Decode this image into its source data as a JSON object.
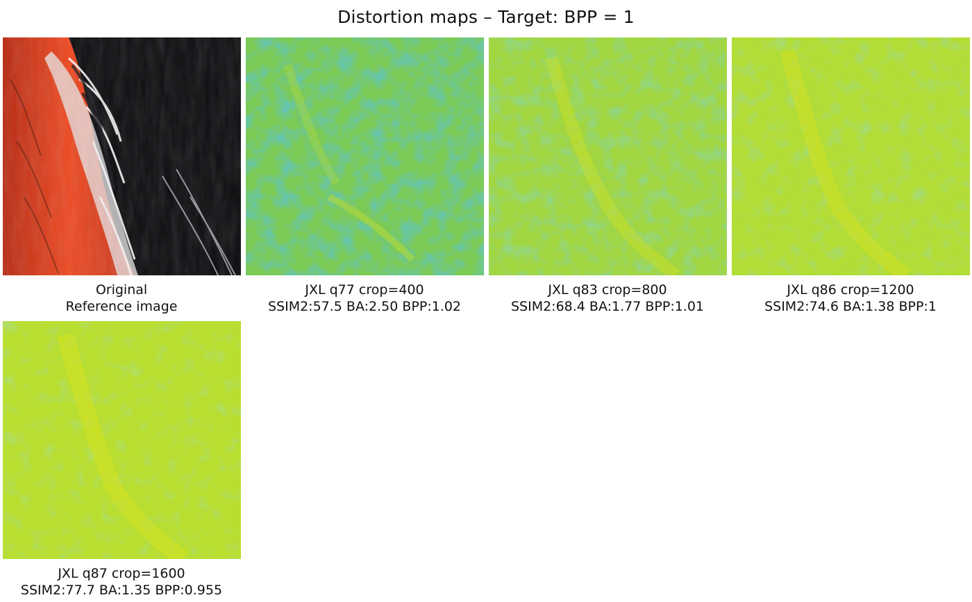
{
  "figure": {
    "title": "Distortion maps – Target: BPP = 1"
  },
  "panels": [
    {
      "kind": "original",
      "caption_line1": "Original",
      "caption_line2": "Reference image"
    },
    {
      "kind": "distortion-map",
      "caption_line1": "JXL q77 crop=400",
      "caption_line2": "SSIM2:57.5 BA:2.50 BPP:1.02",
      "color_hint": "#5cc46a"
    },
    {
      "kind": "distortion-map",
      "caption_line1": "JXL q83 crop=800",
      "caption_line2": "SSIM2:68.4 BA:1.77 BPP:1.01",
      "color_hint": "#8ed14a"
    },
    {
      "kind": "distortion-map",
      "caption_line1": "JXL q86 crop=1200",
      "caption_line2": "SSIM2:74.6 BA:1.38 BPP:1",
      "color_hint": "#a6d93c"
    },
    {
      "kind": "distortion-map",
      "caption_line1": "JXL q87 crop=1600",
      "caption_line2": "SSIM2:77.7 BA:1.35 BPP:0.955",
      "color_hint": "#b0dc36"
    }
  ],
  "colors": {
    "map_low": "#1fa287",
    "map_mid": "#78c94e",
    "map_high": "#d6e21a"
  }
}
